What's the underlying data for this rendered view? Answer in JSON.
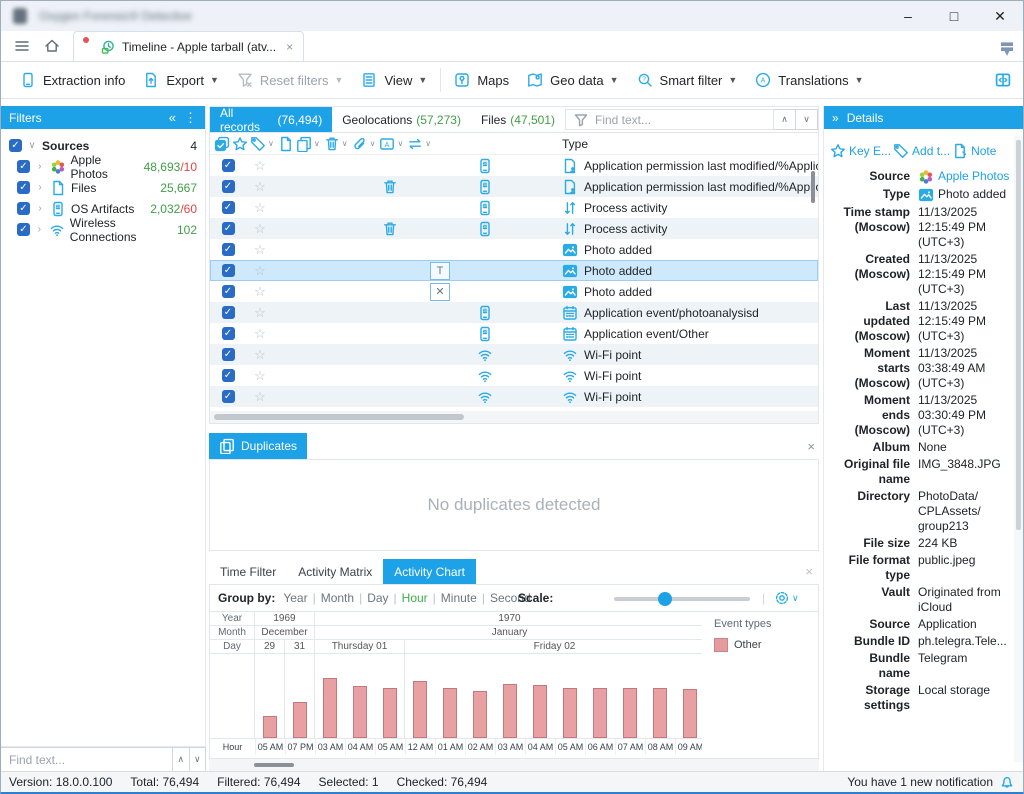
{
  "window": {
    "title": "Oxygen Forensic® Detective",
    "controls": {
      "minimize": "–",
      "maximize": "□",
      "close": "✕"
    }
  },
  "tabbar": {
    "tab_label": "Timeline - Apple tarball (atv...",
    "close_label": "×"
  },
  "toolbar": {
    "items": [
      {
        "label": "Extraction info",
        "icon": "phone-icon",
        "dropdown": false,
        "disabled": false
      },
      {
        "label": "Export",
        "icon": "export-icon",
        "dropdown": true,
        "disabled": false
      },
      {
        "label": "Reset filters",
        "icon": "funnel-x-icon",
        "dropdown": true,
        "disabled": true
      },
      {
        "label": "View",
        "icon": "doc-icon",
        "dropdown": true,
        "disabled": false,
        "sep_after": true
      },
      {
        "label": "Maps",
        "icon": "map-pin-icon",
        "dropdown": false,
        "disabled": false
      },
      {
        "label": "Geo data",
        "icon": "map-icon",
        "dropdown": true,
        "disabled": false
      },
      {
        "label": "Smart filter",
        "icon": "search-question-icon",
        "dropdown": true,
        "disabled": false
      },
      {
        "label": "Translations",
        "icon": "translate-icon",
        "dropdown": true,
        "disabled": false
      }
    ]
  },
  "filters_panel": {
    "title": "Filters",
    "group": {
      "label": "Sources",
      "count": "4"
    },
    "items": [
      {
        "label": "Apple Photos",
        "icon": "apple-photos",
        "count": "48,693",
        "extra": "/10"
      },
      {
        "label": "Files",
        "icon": "file",
        "count": "25,667",
        "extra": ""
      },
      {
        "label": "OS Artifacts",
        "icon": "os",
        "count": "2,032",
        "extra": "/60"
      },
      {
        "label": "Wireless Connections",
        "icon": "wifi",
        "count": "102",
        "extra": ""
      }
    ],
    "find_placeholder": "Find text..."
  },
  "records": {
    "tabs": [
      {
        "label": "All records",
        "count": "(76,494)",
        "active": true
      },
      {
        "label": "Geolocations",
        "count": "(57,273)",
        "active": false
      },
      {
        "label": "Files",
        "count": "(47,501)",
        "active": false
      }
    ],
    "find_placeholder": "Find text...",
    "type_header": "Type",
    "rows": [
      {
        "checked": true,
        "deleted": false,
        "overlay": "",
        "source": "os",
        "type_icon": "app-permission",
        "type": "Application permission last modified/%Applic",
        "selected": false
      },
      {
        "checked": true,
        "deleted": true,
        "overlay": "",
        "source": "os",
        "type_icon": "app-permission",
        "type": "Application permission last modified/%Applic",
        "selected": false
      },
      {
        "checked": true,
        "deleted": false,
        "overlay": "",
        "source": "os",
        "type_icon": "process",
        "type": "Process activity",
        "selected": false
      },
      {
        "checked": true,
        "deleted": true,
        "overlay": "",
        "source": "os",
        "type_icon": "process",
        "type": "Process activity",
        "selected": false
      },
      {
        "checked": true,
        "deleted": false,
        "overlay": "",
        "source": "photos",
        "type_icon": "photo",
        "type": "Photo added",
        "selected": false
      },
      {
        "checked": true,
        "deleted": false,
        "overlay": "T",
        "source": "photos",
        "type_icon": "photo",
        "type": "Photo added",
        "selected": true
      },
      {
        "checked": true,
        "deleted": false,
        "overlay": "X",
        "source": "photos",
        "type_icon": "photo",
        "type": "Photo added",
        "selected": false
      },
      {
        "checked": true,
        "deleted": false,
        "overlay": "",
        "source": "os",
        "type_icon": "calendar",
        "type": "Application event/photoanalysisd",
        "selected": false
      },
      {
        "checked": true,
        "deleted": false,
        "overlay": "",
        "source": "os",
        "type_icon": "calendar",
        "type": "Application event/Other",
        "selected": false
      },
      {
        "checked": true,
        "deleted": false,
        "overlay": "",
        "source": "wifi",
        "type_icon": "wifi",
        "type": "Wi-Fi point",
        "selected": false
      },
      {
        "checked": true,
        "deleted": false,
        "overlay": "",
        "source": "wifi",
        "type_icon": "wifi",
        "type": "Wi-Fi point",
        "selected": false
      },
      {
        "checked": true,
        "deleted": false,
        "overlay": "",
        "source": "wifi",
        "type_icon": "wifi",
        "type": "Wi-Fi point",
        "selected": false
      }
    ]
  },
  "duplicates": {
    "tab_label": "Duplicates",
    "message": "No duplicates detected",
    "close_label": "×"
  },
  "chart_panel": {
    "tabs": [
      "Time Filter",
      "Activity Matrix",
      "Activity Chart"
    ],
    "active_tab": "Activity Chart",
    "close_label": "×",
    "group_by_label": "Group by:",
    "group_by_options": [
      "Year",
      "Month",
      "Day",
      "Hour",
      "Minute",
      "Second"
    ],
    "group_by_selected": "Hour",
    "scale_label": "Scale:",
    "chart_data": {
      "type": "bar",
      "row_labels": {
        "year": "Year",
        "month": "Month",
        "day": "Day",
        "hour": "Hour"
      },
      "year_segments": [
        {
          "label": "1969",
          "cols": 2
        },
        {
          "label": "1970",
          "cols": 13
        }
      ],
      "month_segments": [
        {
          "label": "December",
          "cols": 2
        },
        {
          "label": "January",
          "cols": 13
        }
      ],
      "day_segments": [
        {
          "label": "29",
          "cols": 1
        },
        {
          "label": "31",
          "cols": 1
        },
        {
          "label": "Thursday 01",
          "cols": 3
        },
        {
          "label": "Friday 02",
          "cols": 10
        }
      ],
      "hours": [
        "05 AM",
        "07 PM",
        "03 AM",
        "04 AM",
        "05 AM",
        "12 AM",
        "01 AM",
        "02 AM",
        "03 AM",
        "04 AM",
        "05 AM",
        "06 AM",
        "07 AM",
        "08 AM",
        "09 AM"
      ],
      "values_pct": [
        26,
        42,
        71,
        61,
        59,
        67,
        59,
        55,
        64,
        62,
        59,
        59,
        59,
        59,
        58
      ],
      "bar_color": "#e8a0a2",
      "bar_border": "#c2797c",
      "legend": {
        "title": "Event types",
        "entries": [
          {
            "label": "Other",
            "color": "#e59b9d"
          }
        ]
      }
    }
  },
  "details": {
    "title": "Details",
    "actions": [
      {
        "label": "Key E...",
        "icon": "star-blue"
      },
      {
        "label": "Add t...",
        "icon": "tag-blue"
      },
      {
        "label": "Note",
        "icon": "note-blue"
      }
    ],
    "fields": [
      {
        "label": "Source",
        "value": "Apple Photos",
        "icon": "apple-photos",
        "link": true
      },
      {
        "label": "Type",
        "value": "Photo added",
        "icon": "photo",
        "link": false
      },
      {
        "label": "Time stamp\n(Moscow)",
        "value": "11/13/2025\n12:15:49 PM\n(UTC+3)"
      },
      {
        "label": "Created\n(Moscow)",
        "value": "11/13/2025\n12:15:49 PM\n(UTC+3)"
      },
      {
        "label": "Last\nupdated\n(Moscow)",
        "value": "11/13/2025\n12:15:49 PM\n(UTC+3)"
      },
      {
        "label": "Moment\nstarts\n(Moscow)",
        "value": "11/13/2025\n03:38:49 AM\n(UTC+3)"
      },
      {
        "label": "Moment\nends\n(Moscow)",
        "value": "11/13/2025\n03:30:49 PM\n(UTC+3)"
      },
      {
        "label": "Album",
        "value": "None"
      },
      {
        "label": "Original file\nname",
        "value": "IMG_3848.JPG"
      },
      {
        "label": "Directory",
        "value": "PhotoData/\nCPLAssets/\ngroup213"
      },
      {
        "label": "File size",
        "value": "224 KB"
      },
      {
        "label": "File format\ntype",
        "value": "public.jpeg"
      },
      {
        "label": "Vault",
        "value": "Originated from\niCloud"
      },
      {
        "label": "Source",
        "value": "Application"
      },
      {
        "label": "Bundle ID",
        "value": "ph.telegra.Tele..."
      },
      {
        "label": "Bundle\nname",
        "value": "Telegram"
      },
      {
        "label": "Storage\nsettings",
        "value": "Local storage"
      }
    ]
  },
  "status_bar": {
    "parts": [
      "Version: 18.0.0.100",
      "Total: 76,494",
      "Filtered: 76,494",
      "Selected: 1",
      "Checked: 76,494"
    ],
    "notification": "You have 1 new notification"
  }
}
